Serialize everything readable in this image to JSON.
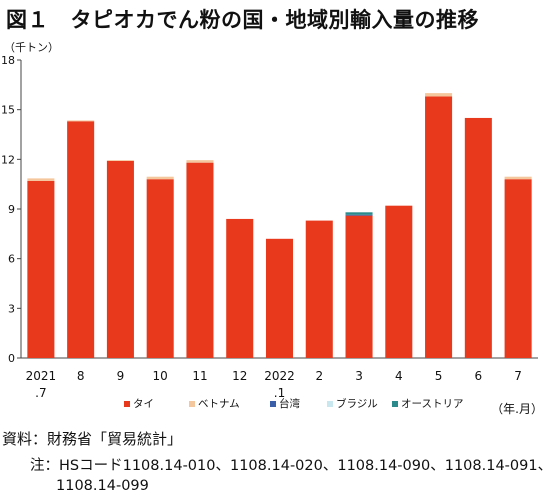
{
  "title": "図１　タピオカでん粉の国・地域別輸入量の推移",
  "source": "資料：財務省「貿易統計」",
  "note_label": "注：",
  "note_line1": "HSコード1108.14-010、1108.14-020、1108.14-090、1108.14-091、",
  "note_line2": "1108.14-099",
  "chart_data": {
    "type": "bar",
    "stacked": true,
    "ylabel": "（千トン）",
    "xlabel": "（年.月）",
    "ylim": [
      0,
      18
    ],
    "yticks": [
      0,
      3,
      6,
      9,
      12,
      15,
      18
    ],
    "grid": false,
    "legend_position": "bottom",
    "categories": [
      "2021.7",
      "8",
      "9",
      "10",
      "11",
      "12",
      "2022.1",
      "2",
      "3",
      "4",
      "5",
      "6",
      "7"
    ],
    "category_labels": [
      [
        "2021",
        ".7"
      ],
      [
        "8"
      ],
      [
        "9"
      ],
      [
        "10"
      ],
      [
        "11"
      ],
      [
        "12"
      ],
      [
        "2022",
        ".1"
      ],
      [
        "2"
      ],
      [
        "3"
      ],
      [
        "4"
      ],
      [
        "5"
      ],
      [
        "6"
      ],
      [
        "7"
      ]
    ],
    "series": [
      {
        "name": "タイ",
        "color": "#e8391c",
        "values": [
          10.7,
          14.3,
          11.9,
          10.8,
          11.8,
          8.4,
          7.2,
          8.3,
          8.6,
          9.2,
          15.8,
          14.5,
          10.8
        ]
      },
      {
        "name": "ベトナム",
        "color": "#f5c79c",
        "values": [
          0.15,
          0.05,
          0.05,
          0.15,
          0.15,
          0.0,
          0.0,
          0.0,
          0.0,
          0.0,
          0.2,
          0.0,
          0.15
        ]
      },
      {
        "name": "台湾",
        "color": "#3b5fa8",
        "values": [
          0,
          0,
          0,
          0,
          0,
          0,
          0,
          0,
          0.05,
          0,
          0,
          0,
          0
        ]
      },
      {
        "name": "ブラジル",
        "color": "#c9e7ee",
        "values": [
          0,
          0,
          0,
          0,
          0,
          0,
          0,
          0,
          0,
          0,
          0,
          0,
          0
        ]
      },
      {
        "name": "オーストリア",
        "color": "#2a8a8c",
        "values": [
          0,
          0,
          0,
          0,
          0,
          0,
          0,
          0,
          0.15,
          0,
          0,
          0,
          0
        ]
      }
    ]
  }
}
